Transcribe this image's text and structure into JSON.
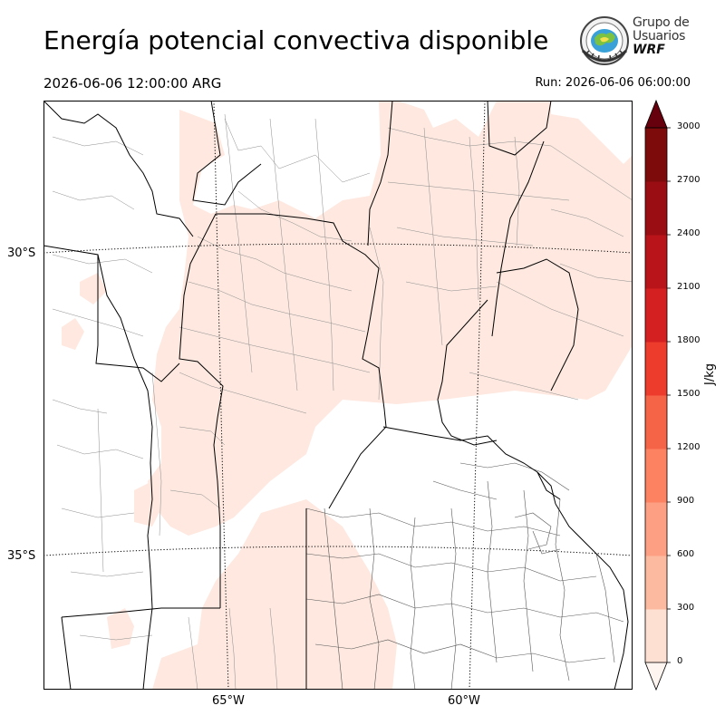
{
  "title": "Energía potencial convectiva disponible",
  "valid_time": "2026-06-06 12:00:00 ARG",
  "run_time": "Run: 2026-06-06 06:00:00",
  "logo": {
    "line1": "Grupo de",
    "line2": "Usuarios",
    "line3": "WRF",
    "icon": "globe-seal-icon"
  },
  "map": {
    "latitude_labels": [
      "30°S",
      "35°S"
    ],
    "longitude_labels": [
      "65°W",
      "60°W"
    ],
    "field_color": "#fee8df",
    "border_color": "#000000",
    "county_color": "#888888",
    "gridline_style": "dotted"
  },
  "colorbar": {
    "unit": "J/kg",
    "ticks": [
      "0",
      "300",
      "600",
      "900",
      "1200",
      "1500",
      "1800",
      "2100",
      "2400",
      "2700",
      "3000"
    ],
    "colors": [
      "#fff5f0",
      "#fee0d2",
      "#fcbba1",
      "#fc9f82",
      "#fc8262",
      "#f66447",
      "#ed3b2c",
      "#d42020",
      "#b81419",
      "#990d13",
      "#7d0b0b",
      "#67000d"
    ],
    "extend": "both"
  }
}
